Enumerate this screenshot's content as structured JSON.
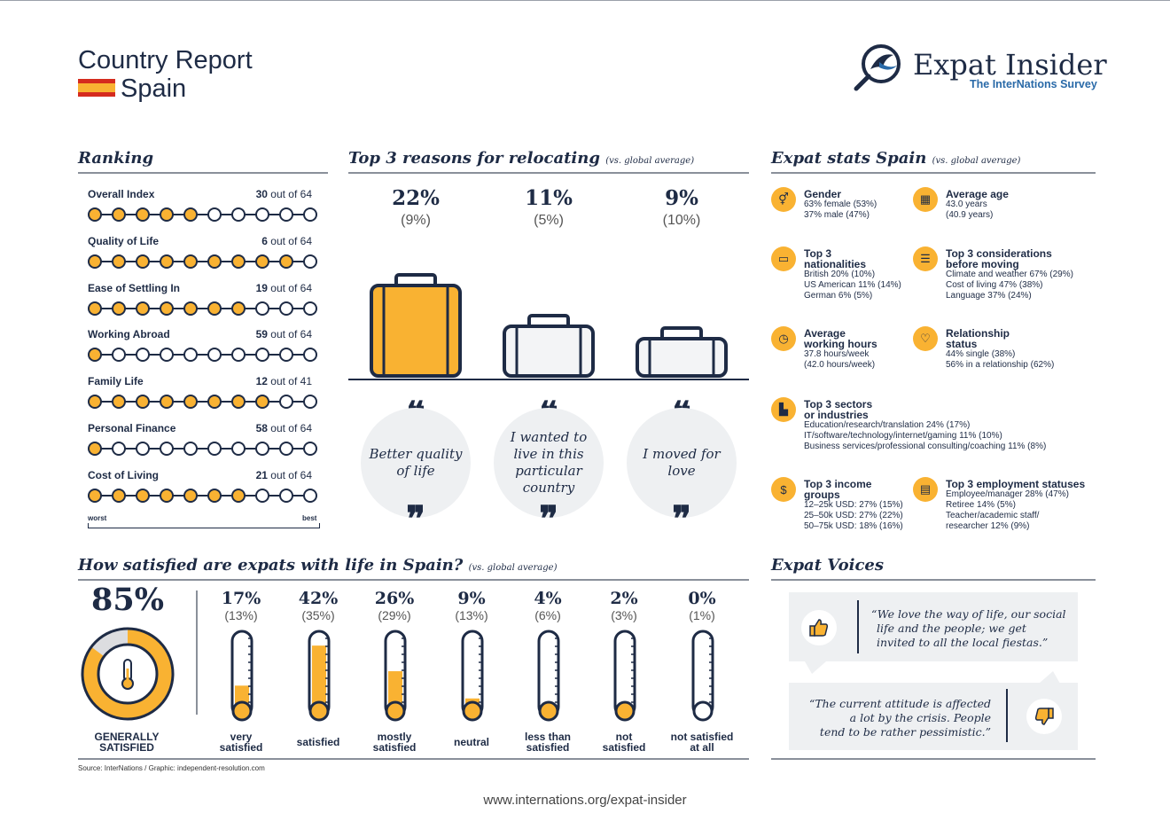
{
  "header": {
    "title": "Country Report",
    "country": "Spain",
    "logo_name": "Expat Insider",
    "logo_sub": "The InterNations Survey"
  },
  "ranking": {
    "title": "Ranking",
    "rows": [
      {
        "label": "Overall Index",
        "rank": "30",
        "of": "out of 64",
        "filled": 5
      },
      {
        "label": "Quality of Life",
        "rank": "6",
        "of": "out of 64",
        "filled": 9
      },
      {
        "label": "Ease of Settling In",
        "rank": "19",
        "of": "out of 64",
        "filled": 7
      },
      {
        "label": "Working Abroad",
        "rank": "59",
        "of": "out of 64",
        "filled": 1
      },
      {
        "label": "Family Life",
        "rank": "12",
        "of": "out of 41",
        "filled": 8
      },
      {
        "label": "Personal Finance",
        "rank": "58",
        "of": "out of 64",
        "filled": 1
      },
      {
        "label": "Cost of Living",
        "rank": "21",
        "of": "out of 64",
        "filled": 7
      }
    ],
    "worst": "worst",
    "best": "best"
  },
  "reasons": {
    "title": "Top 3 reasons for relocating",
    "subtitle": "(vs. global average)",
    "items": [
      {
        "pct": "22%",
        "global": "(9%)",
        "text": "Better quality of life"
      },
      {
        "pct": "11%",
        "global": "(5%)",
        "text": "I wanted to live in this particular country"
      },
      {
        "pct": "9%",
        "global": "(10%)",
        "text": "I moved for love"
      }
    ]
  },
  "stats": {
    "title": "Expat stats Spain",
    "subtitle": "(vs. global average)",
    "gender": {
      "title": "Gender",
      "lines": [
        "63% female (53%)",
        "37% male (47%)"
      ],
      "icon": "⚥"
    },
    "age": {
      "title": "Average age",
      "lines": [
        "43.0 years",
        "(40.9 years)"
      ],
      "icon": "▦"
    },
    "nationalities": {
      "title1": "Top 3",
      "title2": "nationalities",
      "lines": [
        "British 20% (10%)",
        "US American 11% (14%)",
        "German 6% (5%)"
      ],
      "icon": "▭"
    },
    "considerations": {
      "title1": "Top 3 considerations",
      "title2": "before moving",
      "lines": [
        "Climate and weather 67% (29%)",
        "Cost of living 47% (38%)",
        "Language 37% (24%)"
      ],
      "icon": "☰"
    },
    "hours": {
      "title1": "Average",
      "title2": "working hours",
      "lines": [
        "37.8 hours/week",
        "(42.0 hours/week)"
      ],
      "icon": "◷"
    },
    "relationship": {
      "title1": "Relationship",
      "title2": "status",
      "lines": [
        "44% single (38%)",
        "56% in a relationship (62%)"
      ],
      "icon": "♡"
    },
    "sectors": {
      "title1": "Top 3 sectors",
      "title2": "or industries",
      "lines": [
        "Education/research/translation 24% (17%)",
        "IT/software/technology/internet/gaming 11% (10%)",
        "Business services/professional consulting/coaching 11% (8%)"
      ],
      "icon": "▙"
    },
    "income": {
      "title1": "Top 3 income",
      "title2": "groups",
      "lines": [
        "12–25k USD: 27% (15%)",
        "25–50k USD: 27% (22%)",
        "50–75k USD: 18% (16%)"
      ],
      "icon": "$"
    },
    "employment": {
      "title": "Top 3 employment statuses",
      "lines": [
        "Employee/manager 28% (47%)",
        "Retiree 14% (5%)",
        "Teacher/academic staff/",
        "researcher 12% (9%)"
      ],
      "icon": "▤"
    }
  },
  "satisfaction": {
    "title": "How satisfied are expats with life in Spain?",
    "subtitle": "(vs. global average)",
    "overall": {
      "pct": "85%",
      "label1": "GENERALLY",
      "label2": "SATISFIED",
      "value": 0.85
    },
    "items": [
      {
        "pct": "17%",
        "global": "(13%)",
        "l1": "very",
        "l2": "satisfied",
        "value": 0.17
      },
      {
        "pct": "42%",
        "global": "(35%)",
        "l1": "satisfied",
        "l2": "",
        "value": 0.42
      },
      {
        "pct": "26%",
        "global": "(29%)",
        "l1": "mostly",
        "l2": "satisfied",
        "value": 0.26
      },
      {
        "pct": "9%",
        "global": "(13%)",
        "l1": "neutral",
        "l2": "",
        "value": 0.09
      },
      {
        "pct": "4%",
        "global": "(6%)",
        "l1": "less than",
        "l2": "satisfied",
        "value": 0.04
      },
      {
        "pct": "2%",
        "global": "(3%)",
        "l1": "not",
        "l2": "satisfied",
        "value": 0.02
      },
      {
        "pct": "0%",
        "global": "(1%)",
        "l1": "not satisfied",
        "l2": "at all",
        "value": 0.0
      }
    ]
  },
  "voices": {
    "title": "Expat Voices",
    "positive": [
      "“We love the way of life, our social",
      "life and the people; we get",
      "invited to all the local fiestas.”"
    ],
    "negative": [
      "“The current attitude is affected",
      "a lot by the crisis. People",
      "tend to be rather pessimistic.”"
    ]
  },
  "footer": {
    "source": "Source: InterNations / Graphic: independent-resolution.com",
    "url": "www.internations.org/expat-insider"
  },
  "colors": {
    "navy": "#1e2b45",
    "orange": "#f9b232",
    "blue": "#2a6aa8",
    "grey": "#eef0f2"
  }
}
